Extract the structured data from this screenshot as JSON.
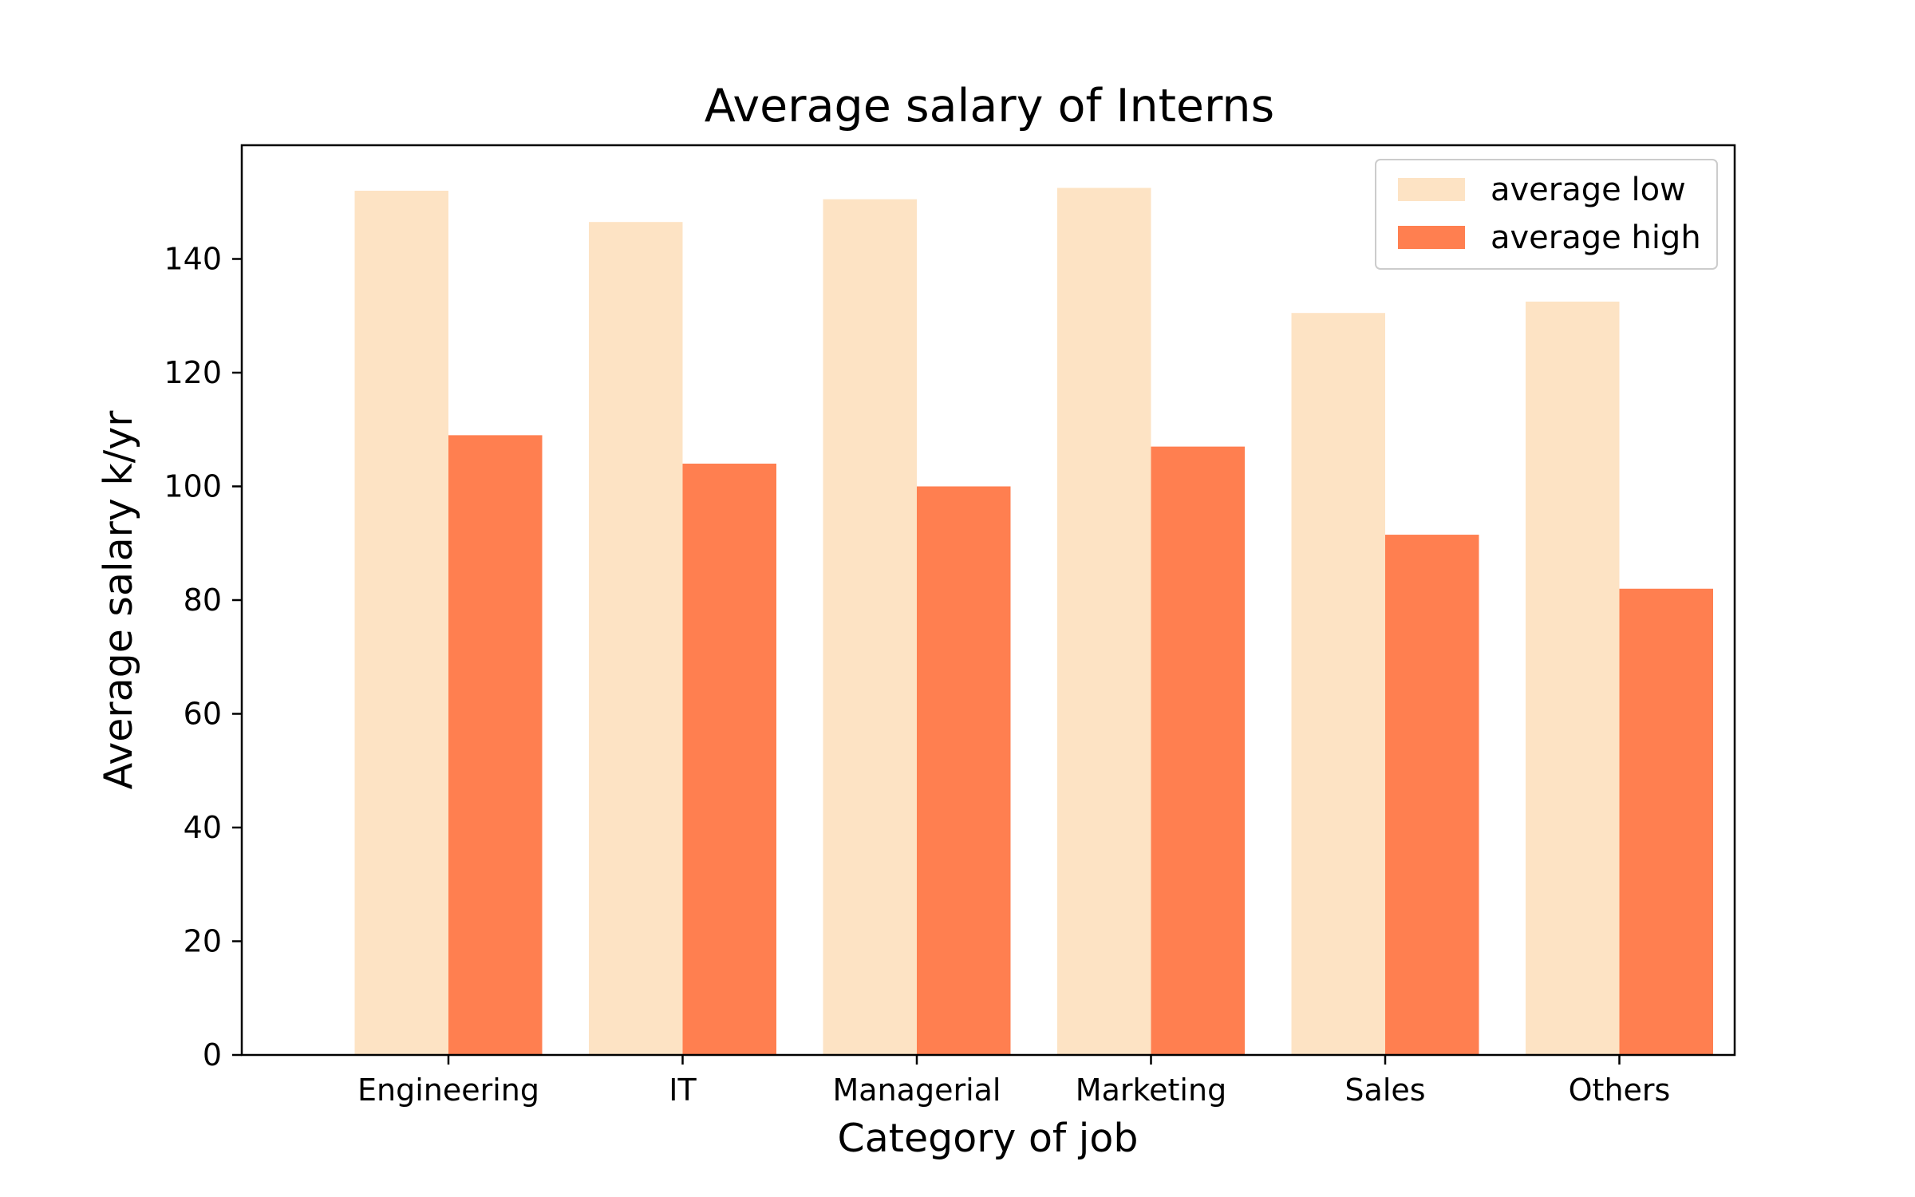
{
  "chart_data": {
    "type": "bar",
    "title": "Average salary of Interns",
    "xlabel": "Category of job",
    "ylabel": "Average salary k/yr",
    "categories": [
      "Engineering",
      "IT",
      "Managerial",
      "Marketing",
      "Sales",
      "Others"
    ],
    "series": [
      {
        "name": "average low",
        "color": "#fde3c4",
        "values": [
          152,
          146.5,
          150.5,
          152.5,
          130.5,
          132.5
        ]
      },
      {
        "name": "average high",
        "color": "#ff7f50",
        "values": [
          109,
          104,
          100,
          107,
          91.5,
          82
        ]
      }
    ],
    "ylim": [
      0,
      160
    ],
    "yticks": [
      0,
      20,
      40,
      60,
      80,
      100,
      120,
      140
    ],
    "grid": false,
    "legend_position": "top-right"
  }
}
